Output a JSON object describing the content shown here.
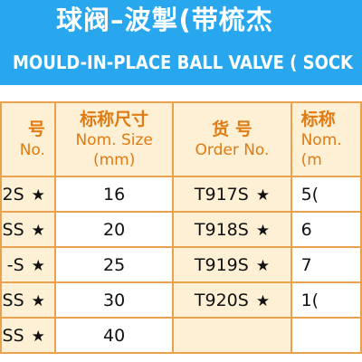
{
  "banner": {
    "title_cn": "球阀–波掣(带梳杰",
    "title_en": "MOULD-IN-PLACE BALL VALVE ( SOCK",
    "bg_color": "#28A7EE"
  },
  "table": {
    "header": {
      "order_cn_left": "号",
      "order_en_left": "No.",
      "size_cn": "标称尺寸",
      "size_en": "Nom. Size",
      "size_unit": "(mm)",
      "order_cn": "货 号",
      "order_en": "Order No.",
      "size_cn_right": "标称",
      "size_en_right": "Nom.",
      "size_unit_right": "(m"
    },
    "rows": [
      {
        "left_order": "2S",
        "left_star": "★",
        "size": "16",
        "order": "T917S",
        "star": "★",
        "right_size": "5("
      },
      {
        "left_order": "SS",
        "left_star": "★",
        "size": "20",
        "order": "T918S",
        "star": "★",
        "right_size": "6"
      },
      {
        "left_order": "-S",
        "left_star": "★",
        "size": "25",
        "order": "T919S",
        "star": "★",
        "right_size": "7"
      },
      {
        "left_order": "SS",
        "left_star": "★",
        "size": "30",
        "order": "T920S",
        "star": "★",
        "right_size": "1("
      },
      {
        "left_order": "SS",
        "left_star": "★",
        "size": "40",
        "order": "",
        "star": "",
        "right_size": ""
      }
    ],
    "border_color": "#EBA24F",
    "header_fill": "#FDF0D4",
    "header_text_color": "#E07A13"
  }
}
